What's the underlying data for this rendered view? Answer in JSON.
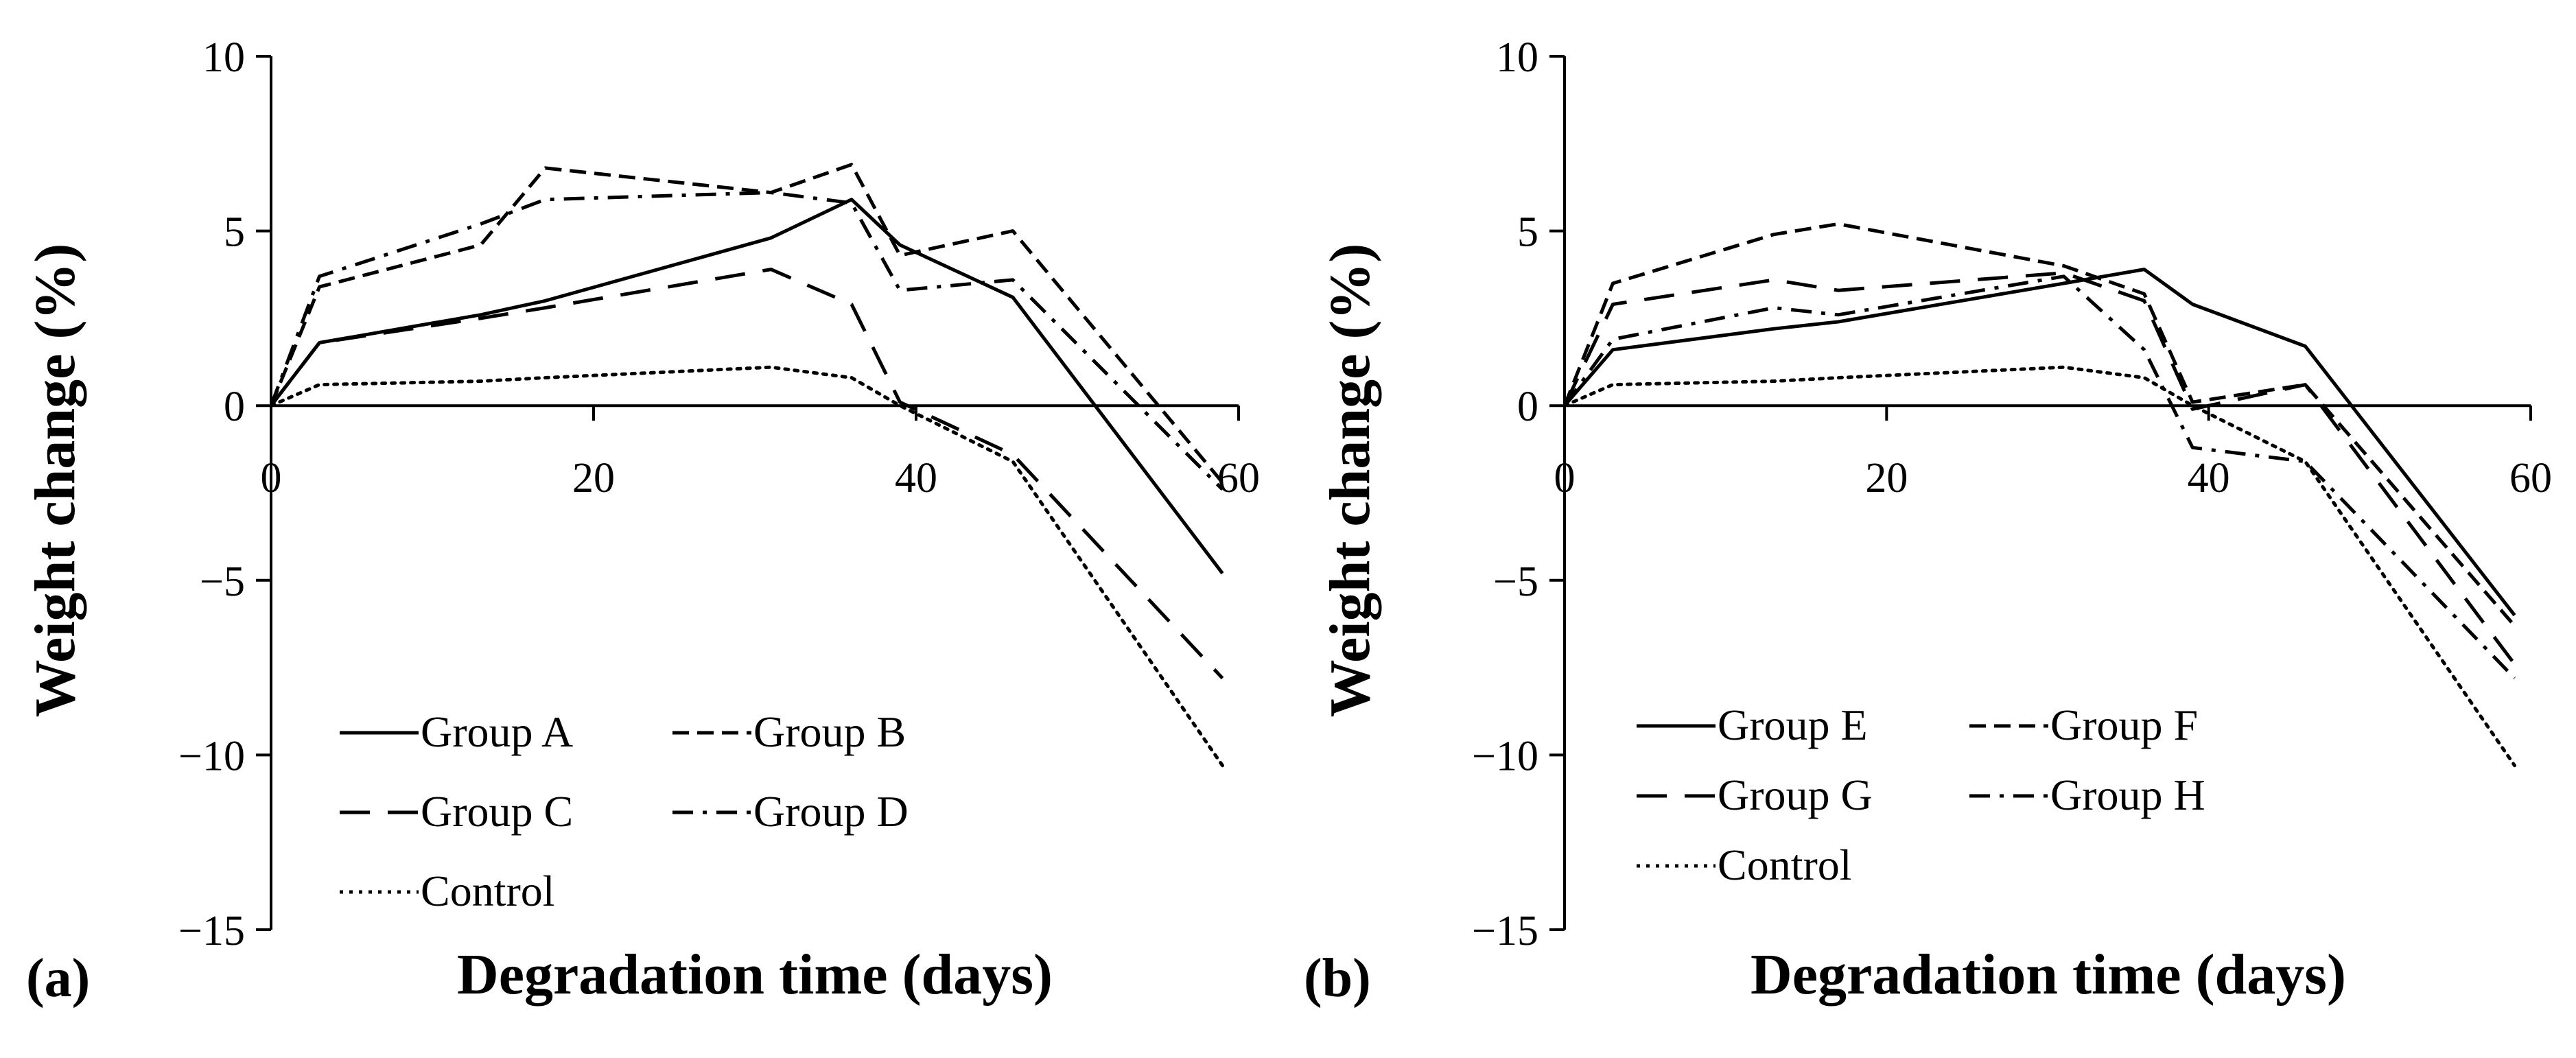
{
  "chart_data": [
    {
      "type": "line",
      "panel_label": "(a)",
      "xlabel": "Degradation time (days)",
      "ylabel": "Weight change (%)",
      "xlim": [
        0,
        60
      ],
      "ylim": [
        -15,
        10
      ],
      "xticks": [
        0,
        20,
        40,
        60
      ],
      "yticks": [
        10,
        5,
        0,
        -5,
        -10,
        -15
      ],
      "x_tick_labels": [
        "0",
        "20",
        "40",
        "60"
      ],
      "y_tick_labels": [
        "10",
        "5",
        "0",
        "−5",
        "−10",
        "−15"
      ],
      "legend_position": "lower-left",
      "series": [
        {
          "name": "Group A",
          "style": "solid",
          "x": [
            0,
            3,
            13,
            17,
            31,
            36,
            39,
            46,
            59
          ],
          "y": [
            0,
            1.8,
            2.6,
            3.0,
            4.8,
            5.9,
            4.6,
            3.1,
            -4.8
          ]
        },
        {
          "name": "Group B",
          "style": "dash-short",
          "x": [
            0,
            3,
            13,
            17,
            31,
            36,
            39,
            46,
            59
          ],
          "y": [
            0,
            3.4,
            4.6,
            6.8,
            6.1,
            6.9,
            4.3,
            5.0,
            -2.2
          ]
        },
        {
          "name": "Group C",
          "style": "dash-long",
          "x": [
            0,
            3,
            13,
            17,
            31,
            36,
            39,
            46,
            59
          ],
          "y": [
            0,
            1.8,
            2.5,
            2.8,
            3.9,
            2.9,
            0.1,
            -1.4,
            -7.8
          ]
        },
        {
          "name": "Group D",
          "style": "dash-dot",
          "x": [
            0,
            3,
            13,
            17,
            31,
            36,
            39,
            46,
            59
          ],
          "y": [
            0,
            3.7,
            5.2,
            5.9,
            6.1,
            5.8,
            3.3,
            3.6,
            -2.4
          ]
        },
        {
          "name": "Control",
          "style": "dotted",
          "x": [
            0,
            3,
            13,
            17,
            31,
            36,
            39,
            46,
            59
          ],
          "y": [
            0,
            0.6,
            0.7,
            0.8,
            1.1,
            0.8,
            0.0,
            -1.6,
            -10.3
          ]
        }
      ]
    },
    {
      "type": "line",
      "panel_label": "(b)",
      "xlabel": "Degradation time (days)",
      "ylabel": "Weight change (%)",
      "xlim": [
        0,
        60
      ],
      "ylim": [
        -15,
        10
      ],
      "xticks": [
        0,
        20,
        40,
        60
      ],
      "yticks": [
        10,
        5,
        0,
        -5,
        -10,
        -15
      ],
      "x_tick_labels": [
        "0",
        "20",
        "40",
        "60"
      ],
      "y_tick_labels": [
        "10",
        "5",
        "0",
        "−5",
        "−10",
        "−15"
      ],
      "legend_position": "lower-left",
      "series": [
        {
          "name": "Group E",
          "style": "solid",
          "x": [
            0,
            3,
            13,
            17,
            31,
            36,
            39,
            46,
            59
          ],
          "y": [
            0,
            1.6,
            2.2,
            2.4,
            3.5,
            3.9,
            2.9,
            1.7,
            -6.0
          ]
        },
        {
          "name": "Group F",
          "style": "dash-short",
          "x": [
            0,
            3,
            13,
            17,
            31,
            36,
            39,
            46,
            59
          ],
          "y": [
            0,
            3.5,
            4.9,
            5.2,
            4.0,
            3.2,
            0.1,
            0.6,
            -6.3
          ]
        },
        {
          "name": "Group G",
          "style": "dash-long",
          "x": [
            0,
            3,
            13,
            17,
            31,
            36,
            39,
            46,
            59
          ],
          "y": [
            0,
            2.9,
            3.6,
            3.3,
            3.8,
            3.0,
            -0.1,
            0.6,
            -7.4
          ]
        },
        {
          "name": "Group H",
          "style": "dash-dot",
          "x": [
            0,
            3,
            13,
            17,
            31,
            36,
            39,
            46,
            59
          ],
          "y": [
            0,
            1.9,
            2.8,
            2.6,
            3.7,
            1.6,
            -1.2,
            -1.6,
            -7.8
          ]
        },
        {
          "name": "Control",
          "style": "dotted",
          "x": [
            0,
            3,
            13,
            17,
            31,
            36,
            39,
            46,
            59
          ],
          "y": [
            0,
            0.6,
            0.7,
            0.8,
            1.1,
            0.8,
            0.0,
            -1.6,
            -10.3
          ]
        }
      ]
    }
  ]
}
